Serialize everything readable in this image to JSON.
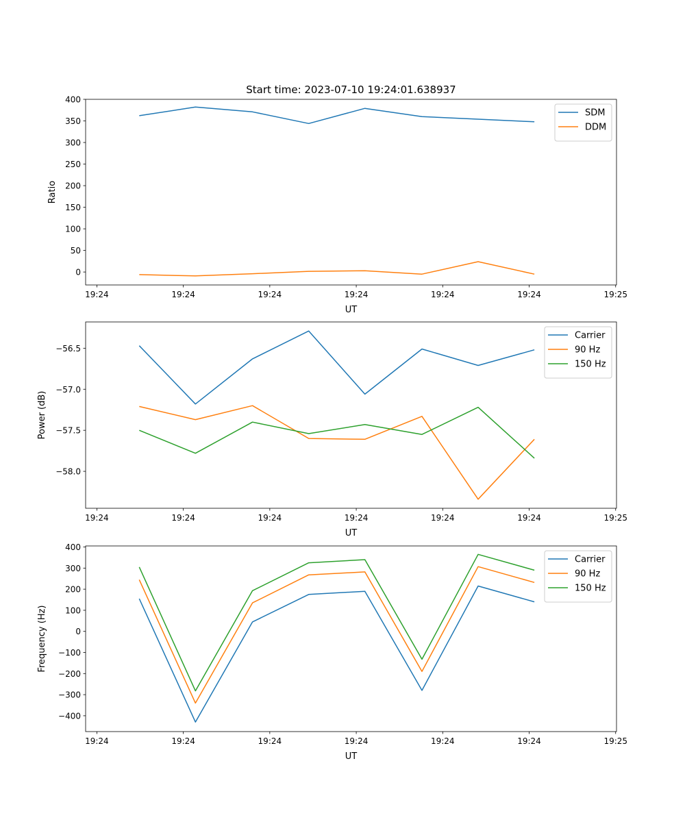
{
  "figure_title": "Start time: 2023-07-10 19:24:01.638937",
  "chart_data": [
    {
      "type": "line",
      "title": "Start time: 2023-07-10 19:24:01.638937",
      "xlabel": "UT",
      "ylabel": "Ratio",
      "x_unit": "seconds after 19:24:00",
      "x": [
        4.9,
        11.4,
        18.0,
        24.5,
        31.0,
        37.6,
        44.1,
        50.6
      ],
      "xlim": [
        -1.3,
        60.1
      ],
      "xticks": [
        0,
        10,
        20,
        30,
        40,
        50,
        60
      ],
      "xtick_labels": [
        "19:24",
        "19:24",
        "19:24",
        "19:24",
        "19:24",
        "19:24",
        "19:25"
      ],
      "ylim": [
        -30,
        400
      ],
      "yticks": [
        0,
        50,
        100,
        150,
        200,
        250,
        300,
        350,
        400
      ],
      "ytick_labels": [
        "0",
        "50",
        "100",
        "150",
        "200",
        "250",
        "300",
        "350",
        "400"
      ],
      "legend_position": "top-right",
      "grid": false,
      "series": [
        {
          "name": "SDM",
          "color": "#1f77b4",
          "values": [
            362,
            382,
            371,
            344,
            379,
            360,
            354,
            348
          ]
        },
        {
          "name": "DDM",
          "color": "#ff7f0e",
          "values": [
            -6,
            -9,
            -4,
            1.5,
            3,
            -5,
            24,
            -5
          ]
        }
      ]
    },
    {
      "type": "line",
      "xlabel": "UT",
      "ylabel": "Power (dB)",
      "x_unit": "seconds after 19:24:00",
      "x": [
        4.9,
        11.4,
        18.0,
        24.5,
        31.0,
        37.6,
        44.1,
        50.6
      ],
      "xlim": [
        -1.3,
        60.1
      ],
      "xticks": [
        0,
        10,
        20,
        30,
        40,
        50,
        60
      ],
      "xtick_labels": [
        "19:24",
        "19:24",
        "19:24",
        "19:24",
        "19:24",
        "19:24",
        "19:25"
      ],
      "ylim": [
        -58.45,
        -56.18
      ],
      "yticks": [
        -58.0,
        -57.5,
        -57.0,
        -56.5
      ],
      "ytick_labels": [
        "−58.0",
        "−57.5",
        "−57.0",
        "−56.5"
      ],
      "legend_position": "top-right",
      "grid": false,
      "series": [
        {
          "name": "Carrier",
          "color": "#1f77b4",
          "values": [
            -56.47,
            -57.18,
            -56.63,
            -56.29,
            -57.06,
            -56.51,
            -56.71,
            -56.52
          ]
        },
        {
          "name": "90 Hz",
          "color": "#ff7f0e",
          "values": [
            -57.21,
            -57.37,
            -57.2,
            -57.6,
            -57.61,
            -57.33,
            -58.34,
            -57.61
          ]
        },
        {
          "name": "150 Hz",
          "color": "#2ca02c",
          "values": [
            -57.5,
            -57.78,
            -57.4,
            -57.54,
            -57.43,
            -57.55,
            -57.22,
            -57.84
          ]
        }
      ]
    },
    {
      "type": "line",
      "xlabel": "UT",
      "ylabel": "Frequency (Hz)",
      "x_unit": "seconds after 19:24:00",
      "x": [
        4.9,
        11.4,
        18.0,
        24.5,
        31.0,
        37.6,
        44.1,
        50.6
      ],
      "xlim": [
        -1.3,
        60.1
      ],
      "xticks": [
        0,
        10,
        20,
        30,
        40,
        50,
        60
      ],
      "xtick_labels": [
        "19:24",
        "19:24",
        "19:24",
        "19:24",
        "19:24",
        "19:24",
        "19:25"
      ],
      "ylim": [
        -475,
        405
      ],
      "yticks": [
        -400,
        -300,
        -200,
        -100,
        0,
        100,
        200,
        300,
        400
      ],
      "ytick_labels": [
        "−400",
        "−300",
        "−200",
        "−100",
        "0",
        "100",
        "200",
        "300",
        "400"
      ],
      "legend_position": "top-right",
      "grid": false,
      "series": [
        {
          "name": "Carrier",
          "color": "#1f77b4",
          "values": [
            155,
            -430,
            45,
            175,
            190,
            -280,
            215,
            140
          ]
        },
        {
          "name": "90 Hz",
          "color": "#ff7f0e",
          "values": [
            245,
            -340,
            135,
            268,
            282,
            -190,
            307,
            232
          ]
        },
        {
          "name": "150 Hz",
          "color": "#2ca02c",
          "values": [
            305,
            -282,
            193,
            325,
            340,
            -132,
            365,
            290
          ]
        }
      ]
    }
  ]
}
